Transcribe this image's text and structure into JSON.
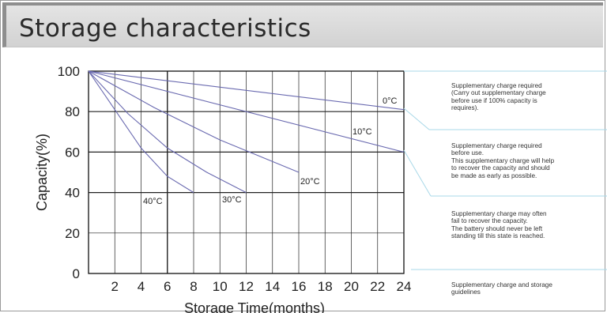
{
  "page": {
    "title": "Storage characteristics"
  },
  "chart_data": {
    "type": "line",
    "title": "Storage characteristics",
    "xlabel": "Storage Time(months)",
    "ylabel": "Capacity(%)",
    "xlim": [
      0,
      24
    ],
    "ylim": [
      0,
      100
    ],
    "xticks": [
      "2",
      "4",
      "6",
      "8",
      "10",
      "12",
      "14",
      "16",
      "18",
      "20",
      "22",
      "24"
    ],
    "yticks": [
      "0",
      "20",
      "40",
      "60",
      "80",
      "100"
    ],
    "grid": true,
    "series": [
      {
        "name": "0°C",
        "x": [
          0,
          24
        ],
        "y": [
          100,
          81
        ]
      },
      {
        "name": "10°C",
        "x": [
          0,
          24
        ],
        "y": [
          100,
          60
        ]
      },
      {
        "name": "20°C",
        "x": [
          0,
          5,
          10,
          16
        ],
        "y": [
          100,
          82,
          66,
          50
        ]
      },
      {
        "name": "30°C",
        "x": [
          0,
          3,
          6,
          9,
          12
        ],
        "y": [
          100,
          79,
          62,
          50,
          40
        ]
      },
      {
        "name": "40°C",
        "x": [
          0,
          2,
          4,
          6,
          8
        ],
        "y": [
          100,
          81,
          62,
          48,
          40
        ]
      }
    ],
    "annotations": [
      "Supplementary charge required (Carry out supplementary charge before use if 100% capacity is requires).",
      "Supplementary charge required before use. This supplementary charge will help to recover the capacity and should be made as early as possible.",
      "Supplementary charge may often fail to recover the capacity. The battery should never be left standing till this state is reached.",
      "Supplementary charge and storage guidelines"
    ]
  },
  "annotations_text": {
    "a1": [
      "Supplementary charge required",
      "(Carry out supplementary charge",
      "before use if 100% capacity is",
      "requires)."
    ],
    "a2": [
      "Supplementary charge required",
      "before use.",
      "This supplementary charge will help",
      "to recover the capacity and should",
      "be made as early as possible."
    ],
    "a3": [
      "Supplementary charge may often",
      "fail to recover the capacity.",
      "The battery should never be left",
      "standing till this state is reached."
    ],
    "a4": [
      "Supplementary charge and storage",
      "guidelines"
    ]
  },
  "colors": {
    "curve": "#6a6ab0",
    "guide": "#a8d8e8",
    "grid": "#222222",
    "title_band": "#d8d8d8"
  }
}
